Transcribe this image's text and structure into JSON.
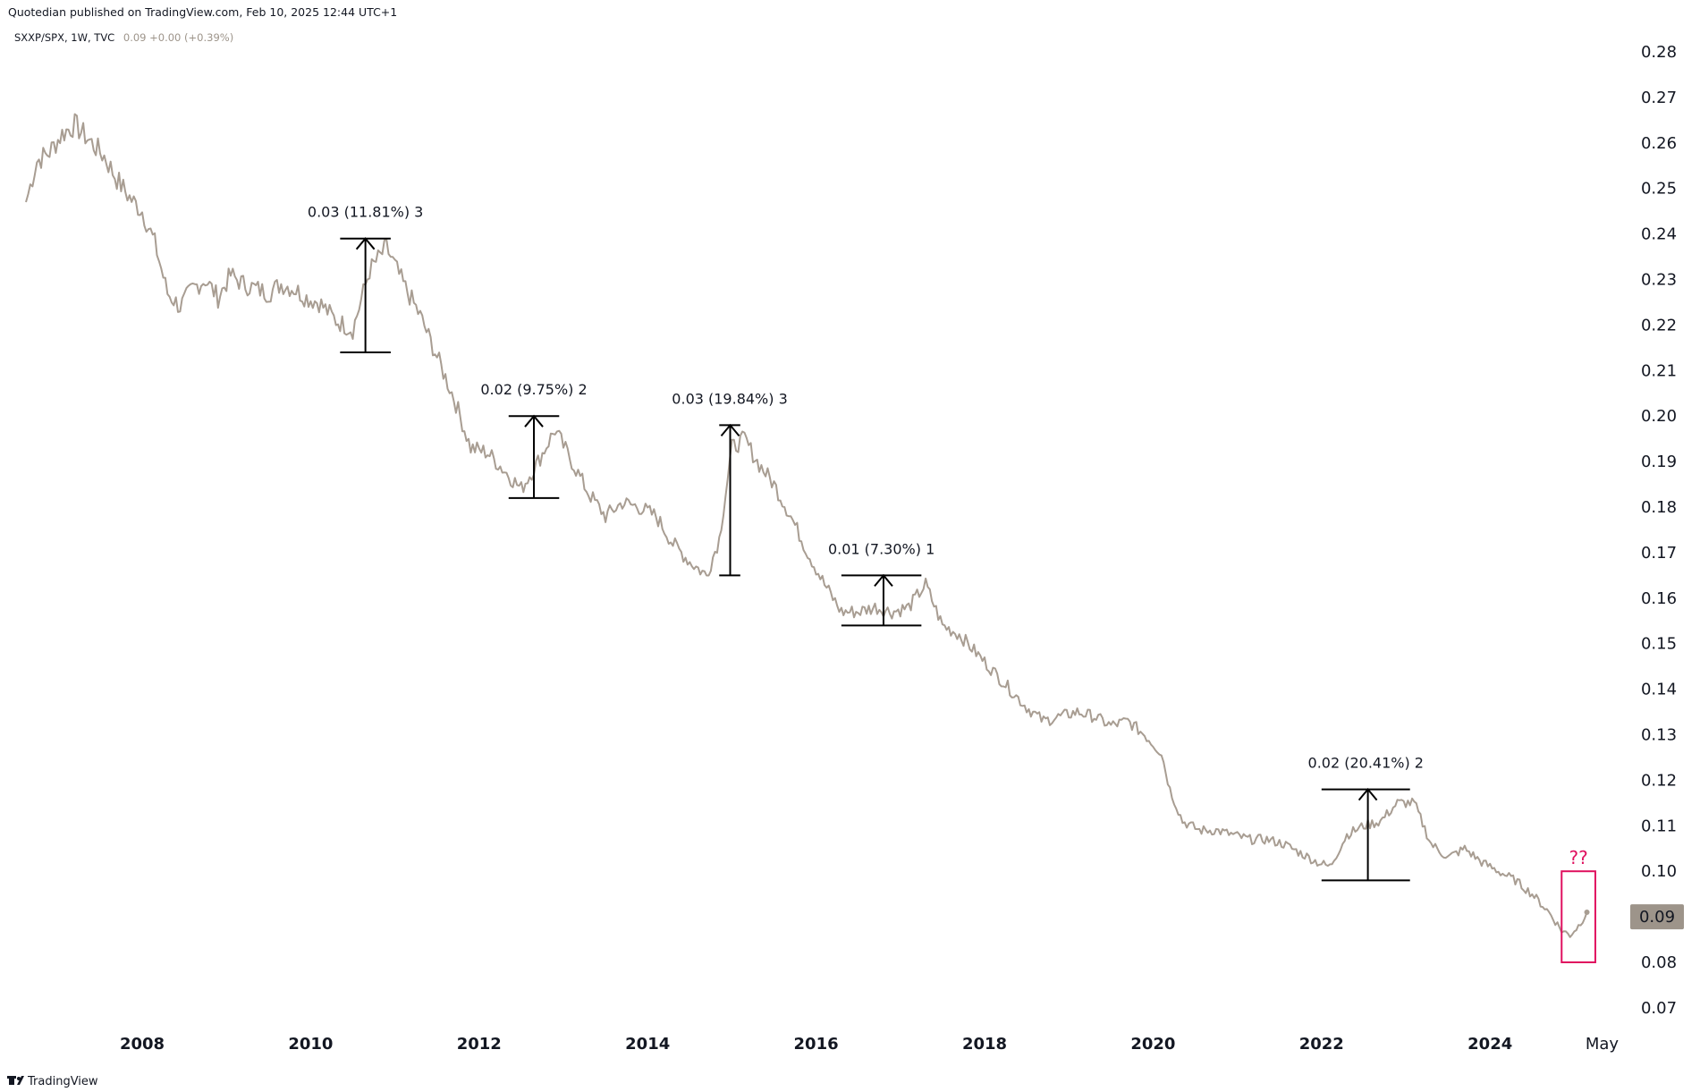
{
  "header": {
    "publisher_line": "Quotedian published on TradingView.com, Feb 10, 2025 12:44 UTC+1",
    "symbol_line": "SXXP/SPX, 1W, TVC",
    "symbol_values": "0.09 +0.00 (+0.39%)"
  },
  "footer": {
    "brand": "TradingView",
    "logo_icon": "tradingview-logo-icon"
  },
  "colors": {
    "line": "#a89d92",
    "annotation": "#000000",
    "highlight": "#e0115f",
    "price_tag": "#9d948a",
    "price_tag_text": "#000000"
  },
  "chart_data": {
    "type": "line",
    "title": "SXXP/SPX, 1W, TVC",
    "x_tick_labels": [
      "2008",
      "2010",
      "2012",
      "2014",
      "2016",
      "2018",
      "2020",
      "2022",
      "2024",
      "May"
    ],
    "x_tick_values": [
      2008.0,
      2010.0,
      2012.0,
      2014.0,
      2016.0,
      2018.0,
      2020.0,
      2022.0,
      2024.0,
      2025.33
    ],
    "y_tick_labels": [
      "0.28",
      "0.27",
      "0.26",
      "0.25",
      "0.24",
      "0.23",
      "0.22",
      "0.21",
      "0.20",
      "0.19",
      "0.18",
      "0.17",
      "0.16",
      "0.15",
      "0.14",
      "0.13",
      "0.12",
      "0.11",
      "0.10",
      "0.09",
      "0.08",
      "0.07"
    ],
    "xlim": [
      2006.6,
      2025.67
    ],
    "ylim": [
      0.0655,
      0.2845
    ],
    "grid": false,
    "last_value_label": "0.09",
    "series": [
      {
        "x": [
          2006.62,
          2006.75,
          2006.9,
          2007.05,
          2007.2,
          2007.35,
          2007.45,
          2007.55,
          2007.7,
          2007.85,
          2008.0,
          2008.15,
          2008.3,
          2008.45,
          2008.6,
          2008.75,
          2008.9,
          2009.05,
          2009.2,
          2009.35,
          2009.5,
          2009.65,
          2009.8,
          2009.95,
          2010.1,
          2010.3,
          2010.5,
          2010.7,
          2010.9,
          2011.1,
          2011.3,
          2011.5,
          2011.7,
          2011.9,
          2012.1,
          2012.3,
          2012.5,
          2012.7,
          2012.9,
          2013.1,
          2013.3,
          2013.5,
          2013.7,
          2013.9,
          2014.1,
          2014.3,
          2014.5,
          2014.7,
          2014.85,
          2015.0,
          2015.15,
          2015.3,
          2015.5,
          2015.7,
          2015.9,
          2016.1,
          2016.3,
          2016.5,
          2016.7,
          2016.9,
          2017.1,
          2017.3,
          2017.5,
          2017.7,
          2017.9,
          2018.1,
          2018.3,
          2018.5,
          2018.7,
          2018.9,
          2019.1,
          2019.3,
          2019.5,
          2019.7,
          2019.9,
          2020.1,
          2020.2,
          2020.35,
          2020.55,
          2020.75,
          2020.95,
          2021.15,
          2021.35,
          2021.55,
          2021.75,
          2021.95,
          2022.1,
          2022.3,
          2022.5,
          2022.7,
          2022.9,
          2023.1,
          2023.3,
          2023.5,
          2023.7,
          2023.9,
          2024.1,
          2024.3,
          2024.5,
          2024.7,
          2024.85,
          2024.95,
          2025.05,
          2025.15
        ],
        "values": [
          0.247,
          0.256,
          0.258,
          0.262,
          0.264,
          0.261,
          0.259,
          0.257,
          0.252,
          0.248,
          0.245,
          0.238,
          0.227,
          0.224,
          0.228,
          0.23,
          0.226,
          0.231,
          0.229,
          0.228,
          0.227,
          0.229,
          0.228,
          0.226,
          0.225,
          0.221,
          0.219,
          0.232,
          0.237,
          0.229,
          0.222,
          0.213,
          0.204,
          0.193,
          0.192,
          0.188,
          0.184,
          0.19,
          0.197,
          0.19,
          0.183,
          0.178,
          0.181,
          0.18,
          0.178,
          0.172,
          0.168,
          0.165,
          0.173,
          0.193,
          0.195,
          0.19,
          0.185,
          0.178,
          0.17,
          0.163,
          0.157,
          0.157,
          0.158,
          0.157,
          0.158,
          0.163,
          0.154,
          0.152,
          0.148,
          0.144,
          0.14,
          0.136,
          0.133,
          0.134,
          0.135,
          0.134,
          0.132,
          0.133,
          0.13,
          0.126,
          0.118,
          0.111,
          0.109,
          0.109,
          0.108,
          0.107,
          0.107,
          0.106,
          0.104,
          0.102,
          0.101,
          0.108,
          0.11,
          0.111,
          0.115,
          0.115,
          0.106,
          0.103,
          0.105,
          0.102,
          0.1,
          0.098,
          0.095,
          0.091,
          0.087,
          0.086,
          0.088,
          0.091
        ]
      }
    ],
    "annotations": [
      {
        "label": "0.03 (11.81%) 3",
        "x_start": 2010.35,
        "x_end": 2010.95,
        "x_arrow": 2010.65,
        "y_low": 0.214,
        "y_high": 0.239
      },
      {
        "label": "0.02 (9.75%) 2",
        "x_start": 2012.35,
        "x_end": 2012.95,
        "x_arrow": 2012.65,
        "y_low": 0.182,
        "y_high": 0.2
      },
      {
        "label": "0.03 (19.84%) 3",
        "x_start": 2014.85,
        "x_end": 2015.1,
        "x_arrow": 2014.98,
        "y_low": 0.165,
        "y_high": 0.198
      },
      {
        "label": "0.01 (7.30%) 1",
        "x_start": 2016.3,
        "x_end": 2017.25,
        "x_arrow": 2016.8,
        "y_low": 0.154,
        "y_high": 0.165
      },
      {
        "label": "0.02 (20.41%) 2",
        "x_start": 2022.0,
        "x_end": 2023.05,
        "x_arrow": 2022.55,
        "y_low": 0.098,
        "y_high": 0.118
      }
    ],
    "highlight": {
      "label": "??",
      "x_start": 2024.85,
      "x_end": 2025.25,
      "y_low": 0.08,
      "y_high": 0.1
    }
  }
}
